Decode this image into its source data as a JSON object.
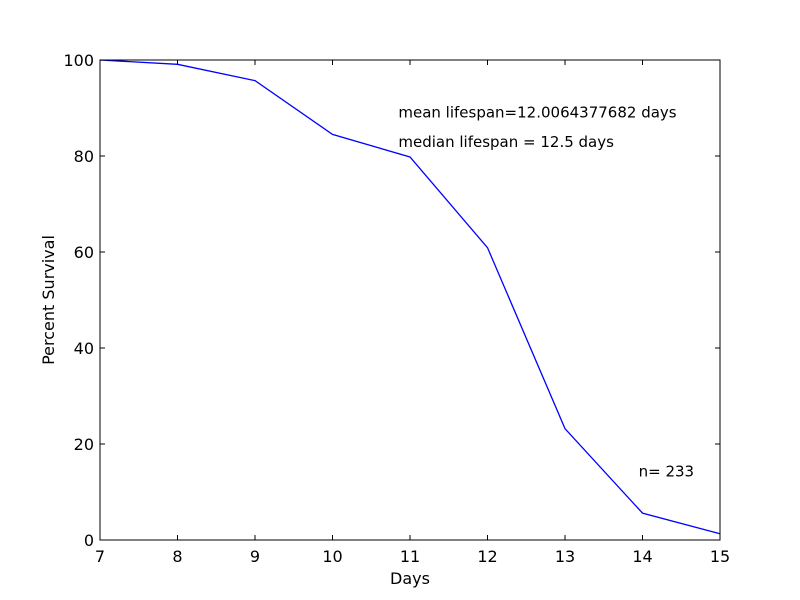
{
  "chart_data": {
    "type": "line",
    "title": "",
    "xlabel": "Days",
    "ylabel": "Percent Survival",
    "xlim": [
      7,
      15
    ],
    "ylim": [
      0,
      100
    ],
    "x_ticks": [
      7,
      8,
      9,
      10,
      11,
      12,
      13,
      14,
      15
    ],
    "y_ticks": [
      0,
      20,
      40,
      60,
      80,
      100
    ],
    "grid": false,
    "legend": "none",
    "series": [
      {
        "color": "#0000ff",
        "x": [
          7,
          8,
          9,
          10,
          11,
          12,
          13,
          14,
          15
        ],
        "y": [
          100,
          99.1,
          95.7,
          84.5,
          79.8,
          60.9,
          23.2,
          5.6,
          1.3
        ]
      }
    ],
    "annotations": [
      {
        "text": "mean lifespan=12.0064377682 days",
        "x": 10.85,
        "y": 88.0
      },
      {
        "text": "median lifespan = 12.5 days",
        "x": 10.85,
        "y": 81.9
      },
      {
        "text": "n= 233",
        "x": 13.95,
        "y": 13.2
      }
    ]
  }
}
